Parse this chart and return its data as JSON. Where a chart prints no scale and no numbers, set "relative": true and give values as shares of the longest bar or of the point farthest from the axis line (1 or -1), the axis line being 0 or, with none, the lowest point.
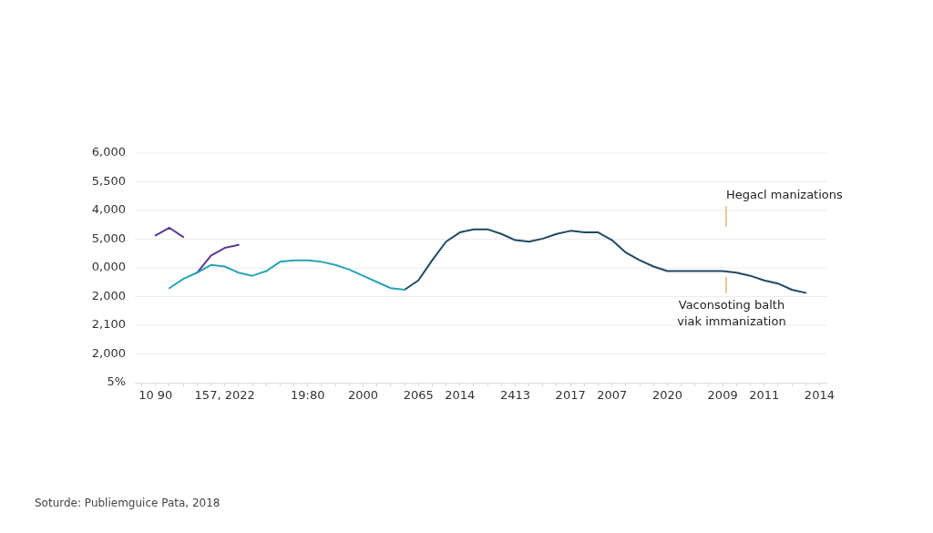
{
  "chart_data": {
    "type": "line",
    "marker": "none",
    "line_style": "solid",
    "grid": "y",
    "legend": false,
    "relative": true,
    "categories": [
      null,
      "10 90",
      null,
      null,
      null,
      null,
      "157, 2022",
      null,
      null,
      null,
      null,
      null,
      "19:80",
      null,
      null,
      null,
      "2000",
      null,
      null,
      null,
      "2065",
      null,
      null,
      "2014",
      null,
      null,
      null,
      "2413",
      null,
      null,
      null,
      "2017",
      null,
      null,
      "2007",
      null,
      null,
      null,
      "2020",
      null,
      null,
      null,
      "2009",
      null,
      null,
      "2011",
      null,
      null,
      null,
      "2014"
    ],
    "series": [
      {
        "color": "#2aa3b5",
        "values": [
          null,
          null,
          0.61,
          0.67,
          0.71,
          0.76,
          0.75,
          0.71,
          0.69,
          0.72,
          0.78,
          0.79,
          0.79,
          0.78,
          0.76,
          0.73,
          0.69,
          0.65,
          0.61,
          0.6,
          null,
          null,
          null,
          null,
          null,
          null,
          null,
          null,
          null,
          null,
          null,
          null,
          null,
          null,
          null,
          null,
          null,
          null,
          null,
          null,
          null,
          null,
          null,
          null,
          null,
          null,
          null,
          null,
          null,
          null
        ]
      },
      {
        "color": "#1f4a63",
        "values": [
          null,
          null,
          null,
          null,
          null,
          null,
          null,
          null,
          null,
          null,
          null,
          null,
          null,
          null,
          null,
          null,
          null,
          null,
          null,
          0.6,
          0.66,
          0.79,
          0.91,
          0.97,
          0.99,
          0.99,
          0.96,
          0.92,
          0.91,
          0.93,
          0.96,
          0.98,
          0.97,
          0.97,
          0.92,
          0.84,
          0.79,
          0.75,
          0.72,
          0.72,
          0.72,
          0.72,
          0.72,
          0.71,
          0.69,
          0.66,
          0.64,
          0.6,
          0.58,
          null
        ]
      },
      {
        "color": "#5a3a92",
        "values": [
          null,
          0.95,
          1,
          0.94,
          null,
          null,
          null,
          null,
          null,
          null,
          null,
          null,
          null,
          null,
          null,
          null,
          null,
          null,
          null,
          null,
          null,
          null,
          null,
          null,
          null,
          null,
          null,
          null,
          null,
          null,
          null,
          null,
          null,
          null,
          null,
          null,
          null,
          null,
          null,
          null,
          null,
          null,
          null,
          null,
          null,
          null,
          null,
          null,
          null,
          null
        ]
      },
      {
        "color": "#5a3a92",
        "values": [
          null,
          null,
          null,
          null,
          0.71,
          0.82,
          0.87,
          0.89,
          null,
          null,
          null,
          null,
          null,
          null,
          null,
          null,
          null,
          null,
          null,
          null,
          null,
          null,
          null,
          null,
          null,
          null,
          null,
          null,
          null,
          null,
          null,
          null,
          null,
          null,
          null,
          null,
          null,
          null,
          null,
          null,
          null,
          null,
          null,
          null,
          null,
          null,
          null,
          null,
          null,
          null
        ]
      }
    ],
    "annotations": [
      "6,000",
      "5,500",
      "4,000",
      "5,000",
      "0,000",
      "2,000",
      "2,100",
      "2,000",
      "5%",
      "Hegacl manizations",
      "Vaconsoting balth\nviak immanization",
      "Soturde: Publiemguice Pata, 2018"
    ]
  }
}
